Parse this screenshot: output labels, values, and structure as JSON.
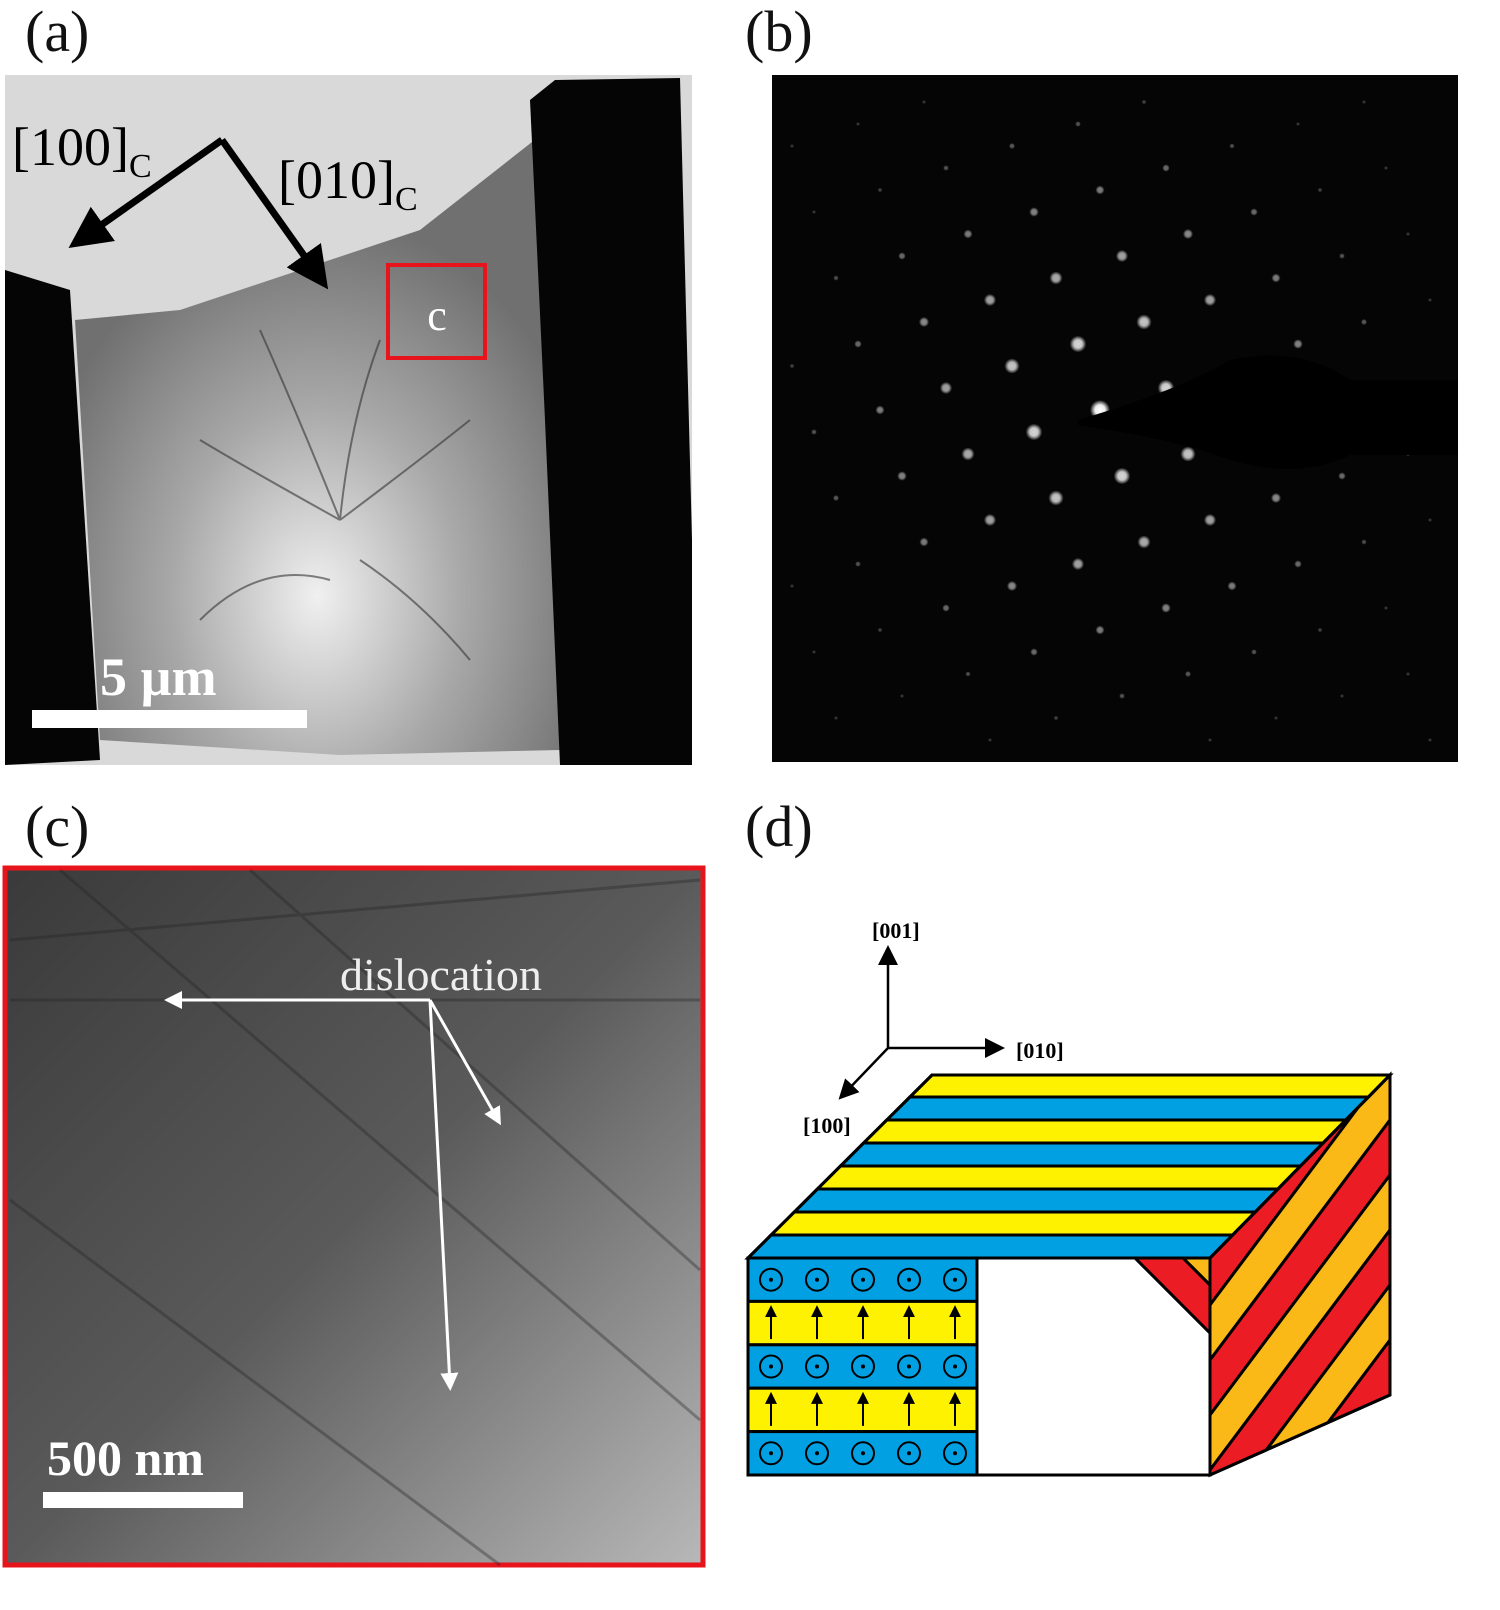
{
  "panels": {
    "a": {
      "label": "(a)",
      "dir1": "[100]",
      "dir1_sub": "C",
      "dir2": "[010]",
      "dir2_sub": "C",
      "box_label": "c",
      "scale": "5 µm"
    },
    "b": {
      "label": "(b)"
    },
    "c": {
      "label": "(c)",
      "annotation": "dislocation",
      "scale": "500 nm"
    },
    "d": {
      "label": "(d)",
      "axis_z": "[001]",
      "axis_y": "[010]",
      "axis_x": "[100]"
    }
  },
  "colors": {
    "highlight_box": "#e8141b",
    "domain_blue": "#00a0e3",
    "domain_yellow": "#fff200",
    "domain_orange": "#fbb917",
    "domain_red": "#ec1c24"
  }
}
